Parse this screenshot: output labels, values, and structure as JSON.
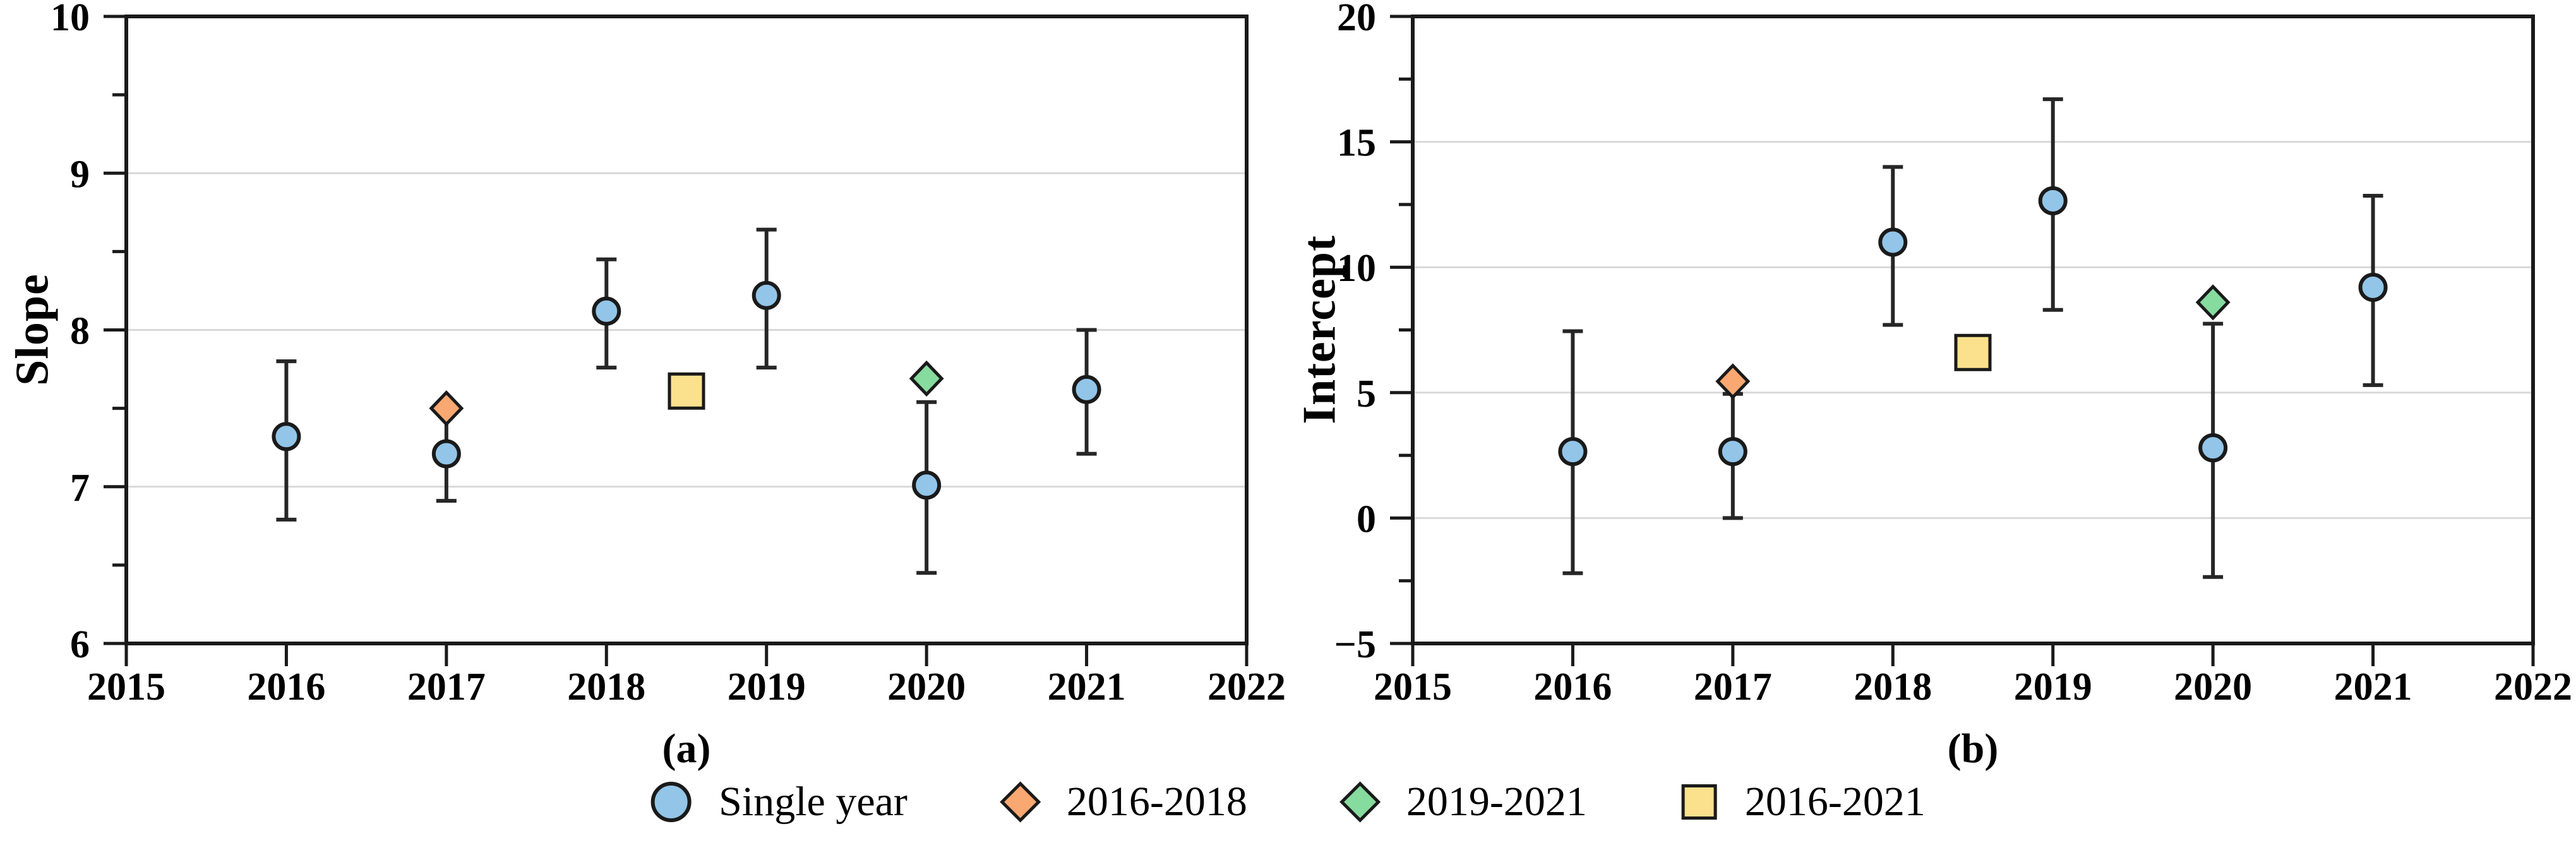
{
  "colors": {
    "blue": "#92C5E8",
    "orange": "#F9A871",
    "green": "#86DB9E",
    "yellow": "#FBE08D",
    "stroke": "#1A1A1A",
    "errorbar": "#262626",
    "grid": "#D9D9D9",
    "text": "#000000"
  },
  "legend": {
    "items": [
      {
        "label": "Single year",
        "marker": "circle",
        "color": "blue"
      },
      {
        "label": "2016-2018",
        "marker": "diamond",
        "color": "orange"
      },
      {
        "label": "2019-2021",
        "marker": "diamond",
        "color": "green"
      },
      {
        "label": "2016-2021",
        "marker": "square",
        "color": "yellow"
      }
    ]
  },
  "chart_data": [
    {
      "type": "scatter",
      "caption": "(a)",
      "ylabel": "Slope",
      "xlabel": "",
      "xlim": [
        2015,
        2022
      ],
      "ylim": [
        6,
        10
      ],
      "x_ticks": [
        2015,
        2016,
        2017,
        2018,
        2019,
        2020,
        2021,
        2022
      ],
      "y_ticks": [
        6,
        7,
        8,
        9,
        10
      ],
      "y_minor_step": 0.5,
      "grid": "major-y",
      "legend_position": "below-figure",
      "series": [
        {
          "name": "Single year",
          "marker": "circle",
          "color": "blue",
          "x": [
            2016,
            2017,
            2018,
            2019,
            2020,
            2021
          ],
          "y": [
            7.32,
            7.21,
            8.12,
            8.22,
            7.01,
            7.62
          ],
          "err_low": [
            6.79,
            6.91,
            7.76,
            7.76,
            6.45,
            7.21
          ],
          "err_high": [
            7.8,
            7.5,
            8.45,
            8.64,
            7.54,
            8.0
          ]
        },
        {
          "name": "2016-2018",
          "marker": "diamond",
          "color": "orange",
          "x": [
            2017
          ],
          "y": [
            7.5
          ]
        },
        {
          "name": "2019-2021",
          "marker": "diamond",
          "color": "green",
          "x": [
            2020
          ],
          "y": [
            7.69
          ]
        },
        {
          "name": "2016-2021",
          "marker": "square",
          "color": "yellow",
          "x": [
            2018.5
          ],
          "y": [
            7.61
          ]
        }
      ]
    },
    {
      "type": "scatter",
      "caption": "(b)",
      "ylabel": "Intercept",
      "xlabel": "",
      "xlim": [
        2015,
        2022
      ],
      "ylim": [
        -5,
        20
      ],
      "x_ticks": [
        2015,
        2016,
        2017,
        2018,
        2019,
        2020,
        2021,
        2022
      ],
      "y_ticks": [
        -5,
        0,
        5,
        10,
        15,
        20
      ],
      "y_minor_step": 2.5,
      "grid": "major-y",
      "legend_position": "below-figure",
      "series": [
        {
          "name": "Single year",
          "marker": "circle",
          "color": "blue",
          "x": [
            2016,
            2017,
            2018,
            2019,
            2020,
            2021
          ],
          "y": [
            2.65,
            2.65,
            11.0,
            12.65,
            2.8,
            9.2
          ],
          "err_low": [
            -2.2,
            0.0,
            7.7,
            8.3,
            -2.35,
            5.3
          ],
          "err_high": [
            7.45,
            4.95,
            14.0,
            16.7,
            7.75,
            12.85
          ]
        },
        {
          "name": "2016-2018",
          "marker": "diamond",
          "color": "orange",
          "x": [
            2017
          ],
          "y": [
            5.45
          ]
        },
        {
          "name": "2019-2021",
          "marker": "diamond",
          "color": "green",
          "x": [
            2020
          ],
          "y": [
            8.6
          ]
        },
        {
          "name": "2016-2021",
          "marker": "square",
          "color": "yellow",
          "x": [
            2018.5
          ],
          "y": [
            6.6
          ]
        }
      ]
    }
  ]
}
